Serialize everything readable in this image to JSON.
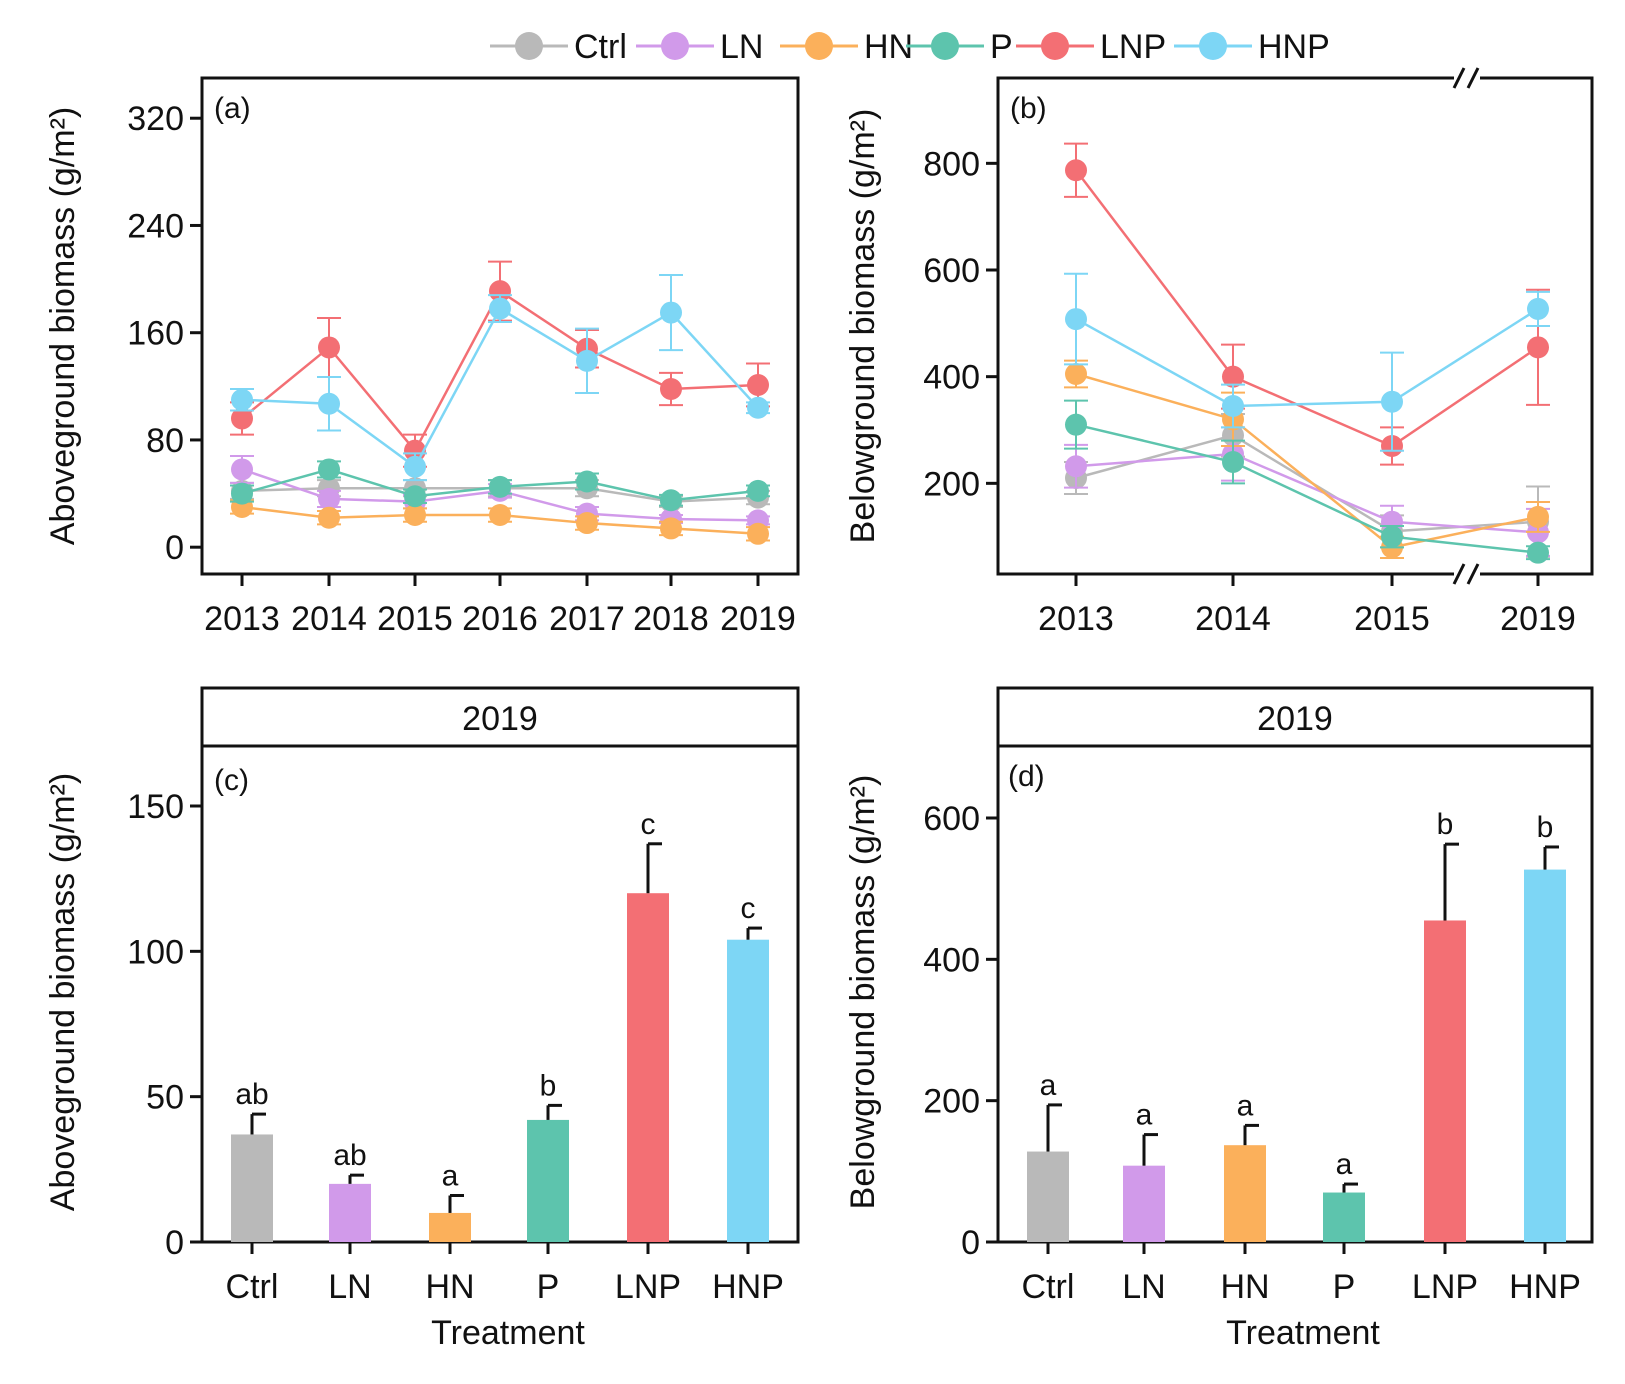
{
  "legend": {
    "entries": [
      {
        "name": "Ctrl",
        "color": "#b9b9b9"
      },
      {
        "name": "LN",
        "color": "#d19aea"
      },
      {
        "name": "HN",
        "color": "#fbb05b"
      },
      {
        "name": "P",
        "color": "#5dc4ad"
      },
      {
        "name": "LNP",
        "color": "#f36f74"
      },
      {
        "name": "HNP",
        "color": "#7dd6f5"
      }
    ]
  },
  "chart_data": [
    {
      "id": "a",
      "type": "line",
      "panel_label": "(a)",
      "ylabel": "Aboveground biomass (g/m²)",
      "x": [
        "2013",
        "2014",
        "2015",
        "2016",
        "2017",
        "2018",
        "2019"
      ],
      "yticks": [
        0,
        80,
        160,
        240,
        320
      ],
      "ylim": [
        -20,
        350
      ],
      "grid": false,
      "series": [
        {
          "name": "Ctrl",
          "values": [
            42,
            44,
            44,
            44,
            44,
            34,
            37
          ],
          "err": [
            6,
            6,
            6,
            6,
            6,
            4,
            5
          ]
        },
        {
          "name": "LN",
          "values": [
            58,
            36,
            34,
            42,
            25,
            21,
            20
          ],
          "err": [
            10,
            6,
            5,
            5,
            5,
            3,
            3
          ]
        },
        {
          "name": "HN",
          "values": [
            30,
            22,
            24,
            24,
            18,
            14,
            10
          ],
          "err": [
            5,
            5,
            5,
            5,
            5,
            5,
            5
          ]
        },
        {
          "name": "P",
          "values": [
            40,
            58,
            38,
            45,
            49,
            35,
            42
          ],
          "err": [
            6,
            6,
            5,
            5,
            6,
            4,
            4
          ]
        },
        {
          "name": "LNP",
          "values": [
            96,
            149,
            72,
            191,
            148,
            118,
            121
          ],
          "err": [
            12,
            22,
            12,
            22,
            14,
            12,
            16
          ]
        },
        {
          "name": "HNP",
          "values": [
            110,
            107,
            60,
            178,
            139,
            175,
            104
          ],
          "err": [
            8,
            20,
            10,
            10,
            24,
            28,
            4
          ]
        }
      ]
    },
    {
      "id": "b",
      "type": "line",
      "panel_label": "(b)",
      "ylabel": "Belowground biomass (g/m²)",
      "x": [
        "2013",
        "2014",
        "2015",
        "2019"
      ],
      "axis_break_between": [
        "2015",
        "2019"
      ],
      "yticks": [
        200,
        400,
        600,
        800
      ],
      "ylim": [
        30,
        960
      ],
      "grid": false,
      "series": [
        {
          "name": "Ctrl",
          "values": [
            210,
            290,
            110,
            128
          ],
          "err": [
            30,
            40,
            30,
            66
          ]
        },
        {
          "name": "LN",
          "values": [
            232,
            255,
            128,
            108
          ],
          "err": [
            40,
            50,
            30,
            44
          ]
        },
        {
          "name": "HN",
          "values": [
            405,
            320,
            80,
            137
          ],
          "err": [
            25,
            50,
            20,
            28
          ]
        },
        {
          "name": "P",
          "values": [
            310,
            240,
            100,
            70
          ],
          "err": [
            45,
            40,
            20,
            12
          ]
        },
        {
          "name": "LNP",
          "values": [
            787,
            400,
            270,
            455
          ],
          "err": [
            50,
            60,
            35,
            108
          ]
        },
        {
          "name": "HNP",
          "values": [
            508,
            345,
            353,
            527
          ],
          "err": [
            85,
            40,
            92,
            32
          ]
        }
      ]
    },
    {
      "id": "c",
      "type": "bar",
      "strip_title": "2019",
      "panel_label": "(c)",
      "ylabel": "Aboveground biomass (g/m²)",
      "xlabel": "Treatment",
      "categories": [
        "Ctrl",
        "LN",
        "HN",
        "P",
        "LNP",
        "HNP"
      ],
      "values": [
        37,
        20,
        10,
        42,
        120,
        104
      ],
      "err": [
        7,
        3,
        6,
        5,
        17,
        4
      ],
      "sig_letters": [
        "ab",
        "ab",
        "a",
        "b",
        "c",
        "c"
      ],
      "yticks": [
        0,
        50,
        100,
        150
      ],
      "ylim": [
        0,
        150
      ]
    },
    {
      "id": "d",
      "type": "bar",
      "strip_title": "2019",
      "panel_label": "(d)",
      "ylabel": "Belowground biomass (g/m²)",
      "xlabel": "Treatment",
      "categories": [
        "Ctrl",
        "LN",
        "HN",
        "P",
        "LNP",
        "HNP"
      ],
      "values": [
        128,
        108,
        137,
        70,
        455,
        527
      ],
      "err": [
        66,
        44,
        28,
        12,
        108,
        32
      ],
      "sig_letters": [
        "a",
        "a",
        "a",
        "a",
        "b",
        "b"
      ],
      "yticks": [
        0,
        200,
        400,
        600
      ],
      "ylim": [
        0,
        600
      ]
    }
  ]
}
